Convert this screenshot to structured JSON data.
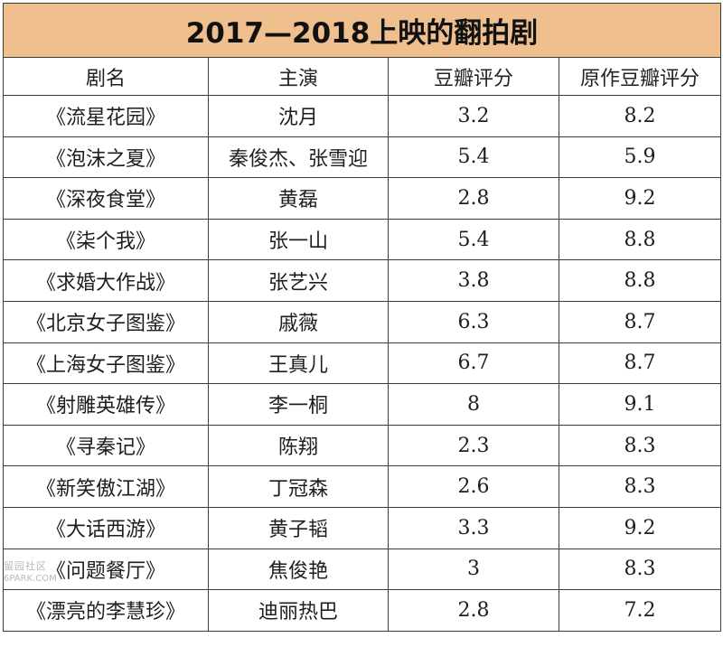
{
  "title": "2017—2018上映的翻拍剧",
  "columns": [
    "剧名",
    "主演",
    "豆瓣评分",
    "原作豆瓣评分"
  ],
  "rows": [
    {
      "name": "《流星花园》",
      "lead": "沈月",
      "score": "3.2",
      "original": "8.2"
    },
    {
      "name": "《泡沫之夏》",
      "lead": "秦俊杰、张雪迎",
      "score": "5.4",
      "original": "5.9"
    },
    {
      "name": "《深夜食堂》",
      "lead": "黄磊",
      "score": "2.8",
      "original": "9.2"
    },
    {
      "name": "《柒个我》",
      "lead": "张一山",
      "score": "5.4",
      "original": "8.8"
    },
    {
      "name": "《求婚大作战》",
      "lead": "张艺兴",
      "score": "3.8",
      "original": "8.8"
    },
    {
      "name": "《北京女子图鉴》",
      "lead": "戚薇",
      "score": "6.3",
      "original": "8.7"
    },
    {
      "name": "《上海女子图鉴》",
      "lead": "王真儿",
      "score": "6.7",
      "original": "8.7"
    },
    {
      "name": "《射雕英雄传》",
      "lead": "李一桐",
      "score": "8",
      "original": "9.1"
    },
    {
      "name": "《寻秦记》",
      "lead": "陈翔",
      "score": "2.3",
      "original": "8.3"
    },
    {
      "name": "《新笑傲江湖》",
      "lead": "丁冠森",
      "score": "2.6",
      "original": "8.3"
    },
    {
      "name": "《大话西游》",
      "lead": "黄子韬",
      "score": "3.3",
      "original": "9.2"
    },
    {
      "name": "《问题餐厅》",
      "lead": "焦俊艳",
      "score": "3",
      "original": "8.3"
    },
    {
      "name": "《漂亮的李慧珍》",
      "lead": "迪丽热巴",
      "score": "2.8",
      "original": "7.2"
    }
  ],
  "watermark": {
    "logo": "留园社区",
    "site": "6PARK.COM"
  },
  "colors": {
    "title_bg": "#efbf8e",
    "border": "#3c3c3c",
    "text": "#1e1e1e"
  }
}
